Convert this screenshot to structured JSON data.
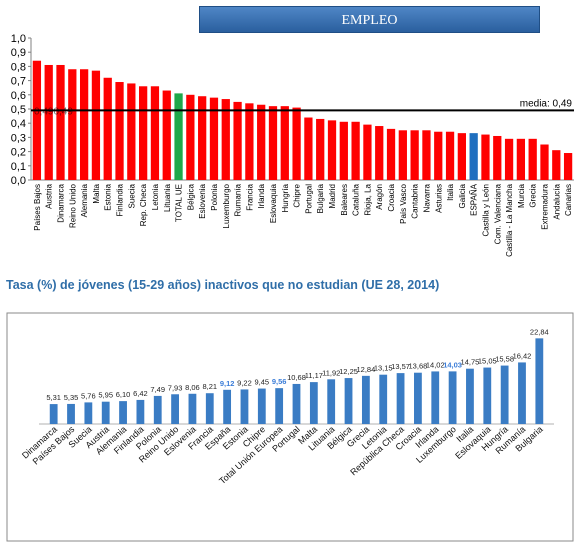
{
  "chart_data": [
    {
      "type": "bar",
      "title": "EMPLEO",
      "categories": [
        "Países Bajos",
        "Austria",
        "Dinamarca",
        "Reino Unido",
        "Alemania",
        "Malta",
        "Estonia",
        "Finlandia",
        "Suecia",
        "Rep. Checa",
        "Letonia",
        "Lituania",
        "TOTAL UE",
        "Bélgica",
        "Eslovenia",
        "Polonia",
        "Luxemburgo",
        "Rumanía",
        "Francia",
        "Irlanda",
        "Eslovaquia",
        "Hungría",
        "Chipre",
        "Portugal",
        "Bulgaria",
        "Madrid",
        "Baleares",
        "Cataluña",
        "Rioja, La",
        "Aragón",
        "Croacia",
        "País Vasco",
        "Cantabria",
        "Navarra",
        "Asturias",
        "Italia",
        "Galicia",
        "ESPAÑA",
        "Castilla y León",
        "Com. Valenciana",
        "Castilla - La Mancha",
        "Murcia",
        "Grecia",
        "Extremadura",
        "Andalucía",
        "Canarias"
      ],
      "values": [
        0.84,
        0.81,
        0.81,
        0.78,
        0.78,
        0.77,
        0.72,
        0.69,
        0.68,
        0.66,
        0.66,
        0.63,
        0.61,
        0.6,
        0.59,
        0.58,
        0.57,
        0.55,
        0.54,
        0.53,
        0.52,
        0.52,
        0.51,
        0.44,
        0.43,
        0.42,
        0.41,
        0.41,
        0.39,
        0.38,
        0.36,
        0.35,
        0.35,
        0.35,
        0.34,
        0.34,
        0.33,
        0.33,
        0.32,
        0.31,
        0.29,
        0.29,
        0.29,
        0.25,
        0.21,
        0.19
      ],
      "highlight": {
        "TOTAL UE": "#1fa84a",
        "ESPAÑA": "#1f6fbf"
      },
      "bar_color": "#ff0000",
      "ylim": [
        0,
        1.0
      ],
      "yticks": [
        "0,0",
        "0,1",
        "0,2",
        "0,3",
        "0,4",
        "0,5",
        "0,6",
        "0,7",
        "0,8",
        "0,9",
        "1,0"
      ],
      "reference_line": {
        "value": 0.49,
        "label": "media: 0,49"
      },
      "overlap_text": "0,490,49",
      "xlabel": "",
      "ylabel": ""
    },
    {
      "type": "bar",
      "title": "Tasa (%) de jóvenes (15-29 años) inactivos que no estudian (UE 28, 2014)",
      "categories": [
        "Dinamarca",
        "Países Bajos",
        "Suecia",
        "Austria",
        "Alemania",
        "Finlandia",
        "Polonia",
        "Reino Unido",
        "Eslovenia",
        "Francia",
        "España",
        "Estonia",
        "Chipre",
        "Total Unión Europea",
        "Portugal",
        "Malta",
        "Lituania",
        "Bélgica",
        "Grecia",
        "Letonia",
        "República Checa",
        "Croacia",
        "Irlanda",
        "Luxemburgo",
        "Italia",
        "Eslovaquia",
        "Hungría",
        "Rumanía",
        "Bulgaria"
      ],
      "values": [
        5.31,
        5.35,
        5.76,
        5.95,
        6.1,
        6.42,
        7.49,
        7.93,
        8.06,
        8.21,
        9.12,
        9.22,
        9.45,
        9.56,
        10.68,
        11.17,
        11.92,
        12.25,
        12.84,
        13.15,
        13.57,
        13.68,
        14.02,
        14.03,
        14.75,
        15.05,
        15.58,
        16.42,
        22.84
      ],
      "value_labels": [
        "5,31",
        "5,35",
        "5,76",
        "5,95",
        "6,10",
        "6,42",
        "7,49",
        "7,93",
        "8,06",
        "8,21",
        "9,12",
        "9,22",
        "9,45",
        "9,56",
        "10,68",
        "11,17",
        "11,92",
        "12,25",
        "12,84",
        "13,15",
        "13,57",
        "13,68",
        "14,02",
        "14,03",
        "14,75",
        "15,05",
        "15,58",
        "16,42",
        "22,84"
      ],
      "highlight_labels": [
        "España",
        "Total Unión Europea",
        "Luxemburgo"
      ],
      "bar_color": "#3a7cc4",
      "highlight_label_color": "#3b7dd8",
      "ylim": [
        0,
        24
      ],
      "xlabel": "",
      "ylabel": ""
    }
  ]
}
